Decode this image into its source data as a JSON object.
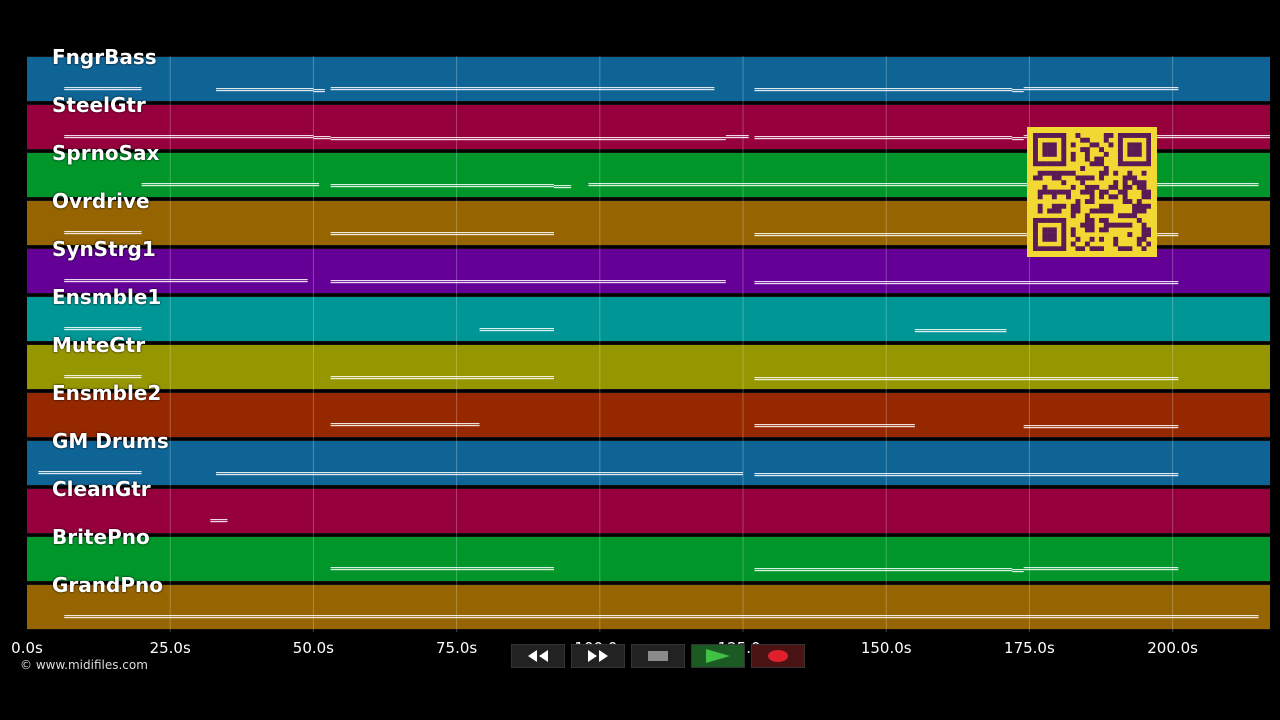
{
  "tracks": [
    {
      "name": "FngrBass",
      "color": "#0f6496"
    },
    {
      "name": "SteelGtr",
      "color": "#96003c"
    },
    {
      "name": "SprnoSax",
      "color": "#00962a"
    },
    {
      "name": "Ovrdrive",
      "color": "#966400"
    },
    {
      "name": "SynStrg1",
      "color": "#640096"
    },
    {
      "name": "Ensmble1",
      "color": "#009696"
    },
    {
      "name": "MuteGtr",
      "color": "#969600"
    },
    {
      "name": "Ensmble2",
      "color": "#962800"
    },
    {
      "name": "GM Drums",
      "color": "#0f6496"
    },
    {
      "name": "CleanGtr",
      "color": "#96003c"
    },
    {
      "name": "BritePno",
      "color": "#00962a"
    },
    {
      "name": "GrandPno",
      "color": "#966400"
    }
  ],
  "timeline": {
    "max_seconds": 217,
    "ticks": [
      "0.0s",
      "25.0s",
      "50.0s",
      "75.0s",
      "100.0s",
      "125.0s",
      "150.0s",
      "175.0s",
      "200.0s"
    ],
    "tick_values": [
      0,
      25,
      50,
      75,
      100,
      125,
      150,
      175,
      200
    ]
  },
  "notes": [
    [
      [
        6.5,
        20
      ],
      [
        33,
        50
      ],
      [
        50,
        52
      ],
      [
        53,
        120
      ],
      [
        127,
        172
      ],
      [
        172,
        174
      ],
      [
        174,
        201
      ]
    ],
    [
      [
        6.5,
        50
      ],
      [
        50,
        53
      ],
      [
        53,
        122
      ],
      [
        122,
        126
      ],
      [
        127,
        172
      ],
      [
        172,
        174
      ],
      [
        174,
        217
      ]
    ],
    [
      [
        20,
        51
      ],
      [
        53,
        92
      ],
      [
        92,
        95
      ],
      [
        98,
        215
      ]
    ],
    [
      [
        6.5,
        20
      ],
      [
        53,
        92
      ],
      [
        127,
        201
      ]
    ],
    [
      [
        6.5,
        49
      ],
      [
        53,
        122
      ],
      [
        127,
        201
      ]
    ],
    [
      [
        6.5,
        20
      ],
      [
        79,
        92
      ],
      [
        155,
        171
      ]
    ],
    [
      [
        6.5,
        20
      ],
      [
        53,
        92
      ],
      [
        127,
        201
      ]
    ],
    [
      [
        53,
        79
      ],
      [
        127,
        155
      ],
      [
        174,
        201
      ]
    ],
    [
      [
        2,
        20
      ],
      [
        33,
        125
      ],
      [
        127,
        201
      ]
    ],
    [
      [
        32,
        35
      ]
    ],
    [
      [
        53,
        92
      ],
      [
        127,
        172
      ],
      [
        172,
        174
      ],
      [
        174,
        201
      ]
    ],
    [
      [
        6.5,
        215
      ]
    ]
  ],
  "footer": {
    "copyright": "© www.midifiles.com"
  },
  "controls": [
    {
      "name": "rewind-button",
      "icon": "rewind-icon"
    },
    {
      "name": "fast-forward-button",
      "icon": "fast-forward-icon"
    },
    {
      "name": "stop-button",
      "icon": "stop-icon"
    },
    {
      "name": "play-button",
      "icon": "play-icon"
    },
    {
      "name": "record-button",
      "icon": "record-icon"
    }
  ],
  "colors": {
    "play": "#3fc244",
    "record": "#e0202a",
    "stop": "#888888",
    "qr": "#f2d832",
    "qr_dark": "#5a1a55"
  }
}
